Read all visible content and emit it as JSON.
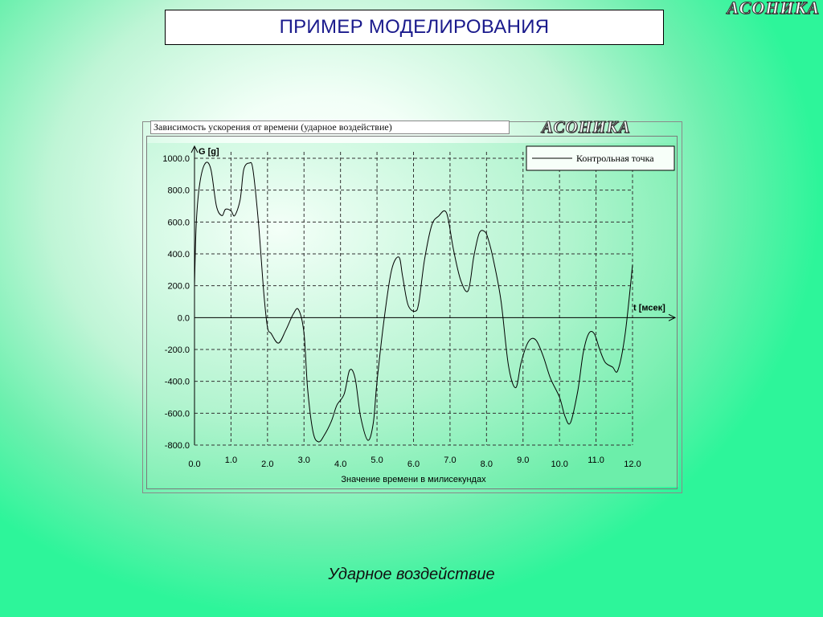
{
  "slide": {
    "title": "ПРИМЕР МОДЕЛИРОВАНИЯ",
    "logo": "АСОНИКА",
    "caption": "Ударное воздействие"
  },
  "chart_data": {
    "type": "line",
    "title": "Зависимость ускорения от времени (ударное воздействие)",
    "logo": "АСОНИКА",
    "ylabel": "G [g]",
    "xlabel_axis": "t [мсек]",
    "xlabel": "Значение времени в милисекундах",
    "xlim": [
      0,
      12
    ],
    "ylim": [
      -800,
      1000
    ],
    "grid": true,
    "legend_position": "top-right",
    "x_ticks": [
      "0.0",
      "1.0",
      "2.0",
      "3.0",
      "4.0",
      "5.0",
      "6.0",
      "7.0",
      "8.0",
      "9.0",
      "10.0",
      "11.0",
      "12.0"
    ],
    "y_ticks": [
      "1000.0",
      "800.0",
      "600.0",
      "400.0",
      "200.0",
      "0.0",
      "-200.0",
      "-400.0",
      "-600.0",
      "-800.0"
    ],
    "series": [
      {
        "name": "Контрольная точка",
        "color": "#000000",
        "x": [
          0.0,
          0.05,
          0.15,
          0.3,
          0.45,
          0.6,
          0.75,
          0.85,
          1.0,
          1.1,
          1.25,
          1.35,
          1.5,
          1.6,
          1.75,
          1.9,
          2.0,
          2.1,
          2.3,
          2.5,
          2.7,
          2.85,
          3.0,
          3.1,
          3.25,
          3.4,
          3.55,
          3.75,
          3.9,
          4.1,
          4.25,
          4.4,
          4.55,
          4.75,
          4.9,
          5.0,
          5.2,
          5.4,
          5.6,
          5.7,
          5.85,
          6.05,
          6.15,
          6.3,
          6.5,
          6.7,
          6.85,
          6.95,
          7.1,
          7.3,
          7.5,
          7.65,
          7.8,
          7.95,
          8.05,
          8.2,
          8.4,
          8.6,
          8.8,
          8.95,
          9.15,
          9.35,
          9.55,
          9.75,
          10.0,
          10.15,
          10.3,
          10.5,
          10.65,
          10.8,
          10.95,
          11.1,
          11.25,
          11.45,
          11.6,
          11.8,
          12.0
        ],
        "y": [
          200,
          600,
          850,
          970,
          930,
          700,
          640,
          680,
          670,
          640,
          740,
          930,
          970,
          930,
          600,
          150,
          -60,
          -100,
          -160,
          -80,
          20,
          50,
          -100,
          -450,
          -720,
          -780,
          -740,
          -650,
          -550,
          -480,
          -330,
          -380,
          -620,
          -770,
          -660,
          -400,
          0,
          300,
          380,
          260,
          80,
          40,
          100,
          360,
          580,
          640,
          670,
          620,
          420,
          230,
          170,
          380,
          530,
          540,
          490,
          350,
          100,
          -300,
          -440,
          -280,
          -150,
          -140,
          -240,
          -380,
          -500,
          -620,
          -660,
          -460,
          -220,
          -100,
          -100,
          -200,
          -280,
          -310,
          -330,
          -100,
          330
        ]
      }
    ]
  }
}
